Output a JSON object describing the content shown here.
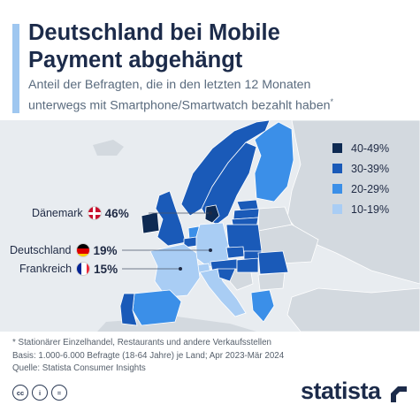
{
  "header": {
    "title_line1": "Deutschland bei Mobile",
    "title_line2": "Payment abgehängt",
    "subtitle_line1": "Anteil der Befragten, die in den letzten 12 Monaten",
    "subtitle_line2": "unterwegs mit Smartphone/Smartwatch bezahlt haben",
    "subtitle_mark": "*"
  },
  "legend": {
    "items": [
      {
        "label": "40-49%",
        "color": "#0e2a52"
      },
      {
        "label": "30-39%",
        "color": "#1a5ab8"
      },
      {
        "label": "20-29%",
        "color": "#3b8fe8"
      },
      {
        "label": "10-19%",
        "color": "#a9cdf4"
      }
    ]
  },
  "callouts": [
    {
      "country": "Dänemark",
      "value": "46%",
      "flag": "denmark"
    },
    {
      "country": "Deutschland",
      "value": "19%",
      "flag": "germany"
    },
    {
      "country": "Frankreich",
      "value": "15%",
      "flag": "france"
    }
  ],
  "colors": {
    "background_land": "#d3d9df",
    "sea": "#e8ecf0",
    "accent": "#9fc7f0"
  },
  "footnote": {
    "line1": "* Stationärer Einzelhandel, Restaurants und andere Verkaufsstellen",
    "line2": "Basis: 1.000-6.000 Befragte (18-64 Jahre) je Land; Apr 2023-Mär 2024",
    "line3": "Quelle: Statista Consumer Insights"
  },
  "branding": {
    "license_icons": [
      "cc-icon",
      "by-icon",
      "nd-icon"
    ],
    "license_labels": [
      "cc",
      "i",
      "="
    ],
    "logo": "statista"
  }
}
